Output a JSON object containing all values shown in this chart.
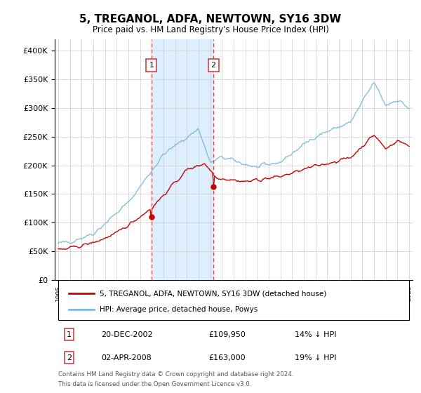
{
  "title": "5, TREGANOL, ADFA, NEWTOWN, SY16 3DW",
  "subtitle": "Price paid vs. HM Land Registry's House Price Index (HPI)",
  "legend_line1": "5, TREGANOL, ADFA, NEWTOWN, SY16 3DW (detached house)",
  "legend_line2": "HPI: Average price, detached house, Powys",
  "sale1_label": "1",
  "sale1_date": "20-DEC-2002",
  "sale1_price": "£109,950",
  "sale1_pct": "14% ↓ HPI",
  "sale1_x": 2002.97,
  "sale1_y": 109950,
  "sale2_label": "2",
  "sale2_date": "02-APR-2008",
  "sale2_price": "£163,000",
  "sale2_pct": "19% ↓ HPI",
  "sale2_x": 2008.27,
  "sale2_y": 163000,
  "vline1_x": 2002.97,
  "vline2_x": 2008.27,
  "hpi_color": "#7ab8d9",
  "price_color": "#cc0000",
  "sale_dot_color": "#cc0000",
  "vline_color": "#dd4444",
  "shade_color": "#ddeeff",
  "ylim": [
    0,
    420000
  ],
  "yticks": [
    0,
    50000,
    100000,
    150000,
    200000,
    250000,
    300000,
    350000,
    400000
  ],
  "xlim": [
    1994.7,
    2025.3
  ],
  "footer_line1": "Contains HM Land Registry data © Crown copyright and database right 2024.",
  "footer_line2": "This data is licensed under the Open Government Licence v3.0."
}
